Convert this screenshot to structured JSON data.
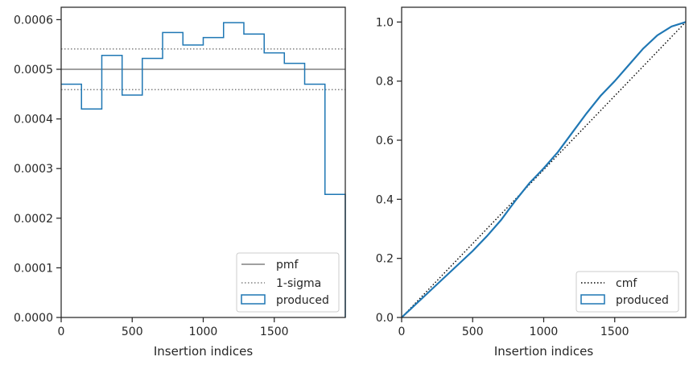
{
  "chart_data": [
    {
      "type": "histogram",
      "xlabel": "Insertion indices",
      "ylabel": "",
      "xlim": [
        0,
        2000
      ],
      "ylim": [
        0,
        0.000625
      ],
      "xticks": [
        0,
        500,
        1000,
        1500
      ],
      "xtick_labels": [
        "0",
        "500",
        "1000",
        "1500"
      ],
      "yticks": [
        0,
        0.0001,
        0.0002,
        0.0003,
        0.0004,
        0.0005,
        0.0006
      ],
      "ytick_labels": [
        "0.0000",
        "0.0001",
        "0.0002",
        "0.0003",
        "0.0004",
        "0.0005",
        "0.0006"
      ],
      "bin_edges": [
        0,
        143,
        286,
        429,
        571,
        714,
        857,
        1000,
        1143,
        1286,
        1429,
        1571,
        1714,
        1857,
        2000
      ],
      "series": [
        {
          "name": "produced",
          "style": "step",
          "color": "#1f77b4",
          "values": [
            0.00047,
            0.00042,
            0.000528,
            0.000448,
            0.000522,
            0.000574,
            0.000549,
            0.000564,
            0.000594,
            0.000571,
            0.000533,
            0.000512,
            0.00047,
            0.000248
          ]
        }
      ],
      "reference_lines": [
        {
          "name": "pmf",
          "y": 0.0005,
          "style": "solid",
          "color": "#808080"
        },
        {
          "name": "1-sigma",
          "y": 0.000541,
          "style": "dotted",
          "color": "#808080"
        },
        {
          "name": "",
          "y": 0.000459,
          "style": "dotted",
          "color": "#808080"
        }
      ],
      "legend": {
        "placement": "lower-right",
        "entries": [
          "pmf",
          "1-sigma",
          "produced"
        ]
      },
      "grid": false
    },
    {
      "type": "line",
      "xlabel": "Insertion indices",
      "ylabel": "",
      "xlim": [
        0,
        2000
      ],
      "ylim": [
        0,
        1.05
      ],
      "xticks": [
        0,
        500,
        1000,
        1500
      ],
      "xtick_labels": [
        "0",
        "500",
        "1000",
        "1500"
      ],
      "yticks": [
        0,
        0.2,
        0.4,
        0.6,
        0.8,
        1.0
      ],
      "ytick_labels": [
        "0.0",
        "0.2",
        "0.4",
        "0.6",
        "0.8",
        "1.0"
      ],
      "series": [
        {
          "name": "cmf",
          "style": "dotted",
          "color": "#000000",
          "x": [
            0,
            2000
          ],
          "y": [
            0,
            1.0
          ]
        },
        {
          "name": "produced",
          "style": "solid",
          "color": "#1f77b4",
          "x": [
            0,
            100,
            200,
            300,
            400,
            500,
            600,
            700,
            800,
            900,
            1000,
            1100,
            1200,
            1300,
            1400,
            1500,
            1600,
            1700,
            1800,
            1900,
            2000
          ],
          "y": [
            0,
            0.045,
            0.09,
            0.135,
            0.18,
            0.225,
            0.275,
            0.33,
            0.395,
            0.455,
            0.505,
            0.56,
            0.625,
            0.69,
            0.75,
            0.8,
            0.855,
            0.91,
            0.955,
            0.985,
            1.0
          ]
        }
      ],
      "legend": {
        "placement": "lower-right",
        "entries": [
          "cmf",
          "produced"
        ]
      },
      "grid": false
    }
  ]
}
